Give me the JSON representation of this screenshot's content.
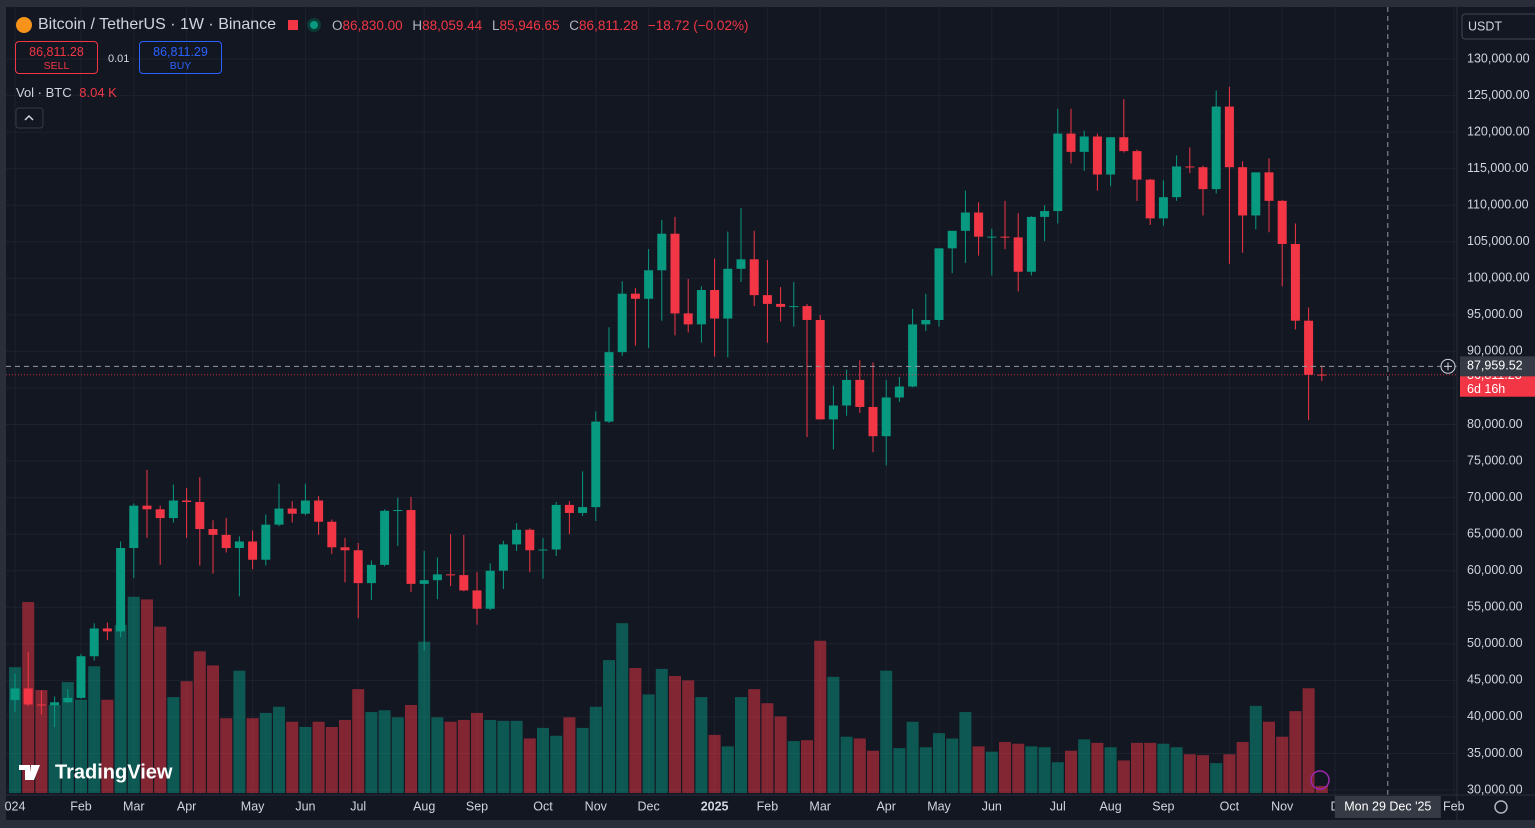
{
  "chart_data": {
    "type": "candlestick",
    "title": "Bitcoin / TetherUS · 1W · Binance",
    "open": [
      42300,
      43900,
      41700,
      41600,
      42000,
      42600,
      48300,
      52100,
      51700,
      63100,
      68900,
      68400,
      67200,
      69600,
      69400,
      65700,
      64900,
      63100,
      64000,
      61500,
      66300,
      68500,
      67800,
      69600,
      66700,
      63200,
      62800,
      58300,
      60800,
      68200,
      68300,
      58200,
      58700,
      59500,
      59400,
      57300,
      54800,
      60000,
      63600,
      65600,
      62800,
      62900,
      69000,
      67900,
      68700,
      80400,
      89900,
      97900,
      97200,
      101100,
      106100,
      95200,
      93700,
      98400,
      94500,
      101300,
      102600,
      97700,
      96500,
      96100,
      96200,
      94300,
      80700,
      82600,
      86100,
      82400,
      78400,
      83700,
      85200,
      93700,
      94300,
      104100,
      106500,
      109000,
      105700,
      105700,
      105600,
      100900,
      108400,
      109200,
      119800,
      117300,
      119400,
      114200,
      119300,
      117400,
      113500,
      108200,
      111100,
      115300,
      115200,
      112200,
      123500,
      115200,
      108600,
      114500,
      110600,
      104700,
      94200,
      86830
    ],
    "high": [
      45900,
      48900,
      43600,
      42800,
      43800,
      48600,
      52800,
      52900,
      64000,
      69200,
      73800,
      68900,
      71800,
      71300,
      72800,
      66900,
      67200,
      64700,
      65500,
      67700,
      71900,
      69500,
      71900,
      70200,
      67000,
      64500,
      63800,
      61400,
      68400,
      70000,
      70100,
      62700,
      61800,
      65000,
      64900,
      59800,
      61000,
      64100,
      66500,
      65800,
      64500,
      69400,
      69500,
      73600,
      81800,
      93300,
      99600,
      98700,
      104000,
      108000,
      108400,
      99900,
      98900,
      102700,
      106400,
      109600,
      106500,
      102500,
      98800,
      99500,
      96500,
      95000,
      85300,
      87500,
      88800,
      88500,
      86100,
      86500,
      95800,
      97900,
      104100,
      105800,
      112000,
      110400,
      106800,
      110600,
      108900,
      108500,
      110000,
      123200,
      123200,
      120200,
      119800,
      119300,
      124500,
      117600,
      113600,
      113400,
      116800,
      117900,
      115400,
      125700,
      126200,
      116000,
      114000,
      116400,
      110700,
      107500,
      96000,
      88059.44
    ],
    "low": [
      40700,
      41500,
      40300,
      38600,
      41900,
      42500,
      47700,
      50500,
      50900,
      59000,
      64500,
      60800,
      66600,
      64500,
      60700,
      59600,
      62500,
      56500,
      60200,
      60700,
      66100,
      66600,
      67600,
      64900,
      62300,
      58400,
      53500,
      56000,
      60600,
      63400,
      57100,
      49100,
      56100,
      57900,
      57200,
      52600,
      54600,
      57500,
      62700,
      59800,
      58900,
      62000,
      65000,
      67500,
      66800,
      80200,
      89400,
      90800,
      90500,
      94200,
      92200,
      92600,
      91200,
      89300,
      89200,
      99500,
      96200,
      91200,
      94100,
      93400,
      78300,
      81000,
      76600,
      81200,
      81600,
      76200,
      74400,
      83100,
      85100,
      92800,
      93400,
      100700,
      102100,
      103100,
      100400,
      104000,
      98200,
      100400,
      105100,
      107500,
      115700,
      114700,
      112000,
      112600,
      117200,
      110600,
      107300,
      107200,
      110600,
      114400,
      108600,
      111600,
      102000,
      103500,
      106700,
      106300,
      98900,
      93000,
      80600,
      85946.65
    ],
    "close": [
      43900,
      41700,
      41600,
      42000,
      42600,
      48300,
      52100,
      51700,
      63100,
      68900,
      68400,
      67200,
      69600,
      69400,
      65700,
      64900,
      63100,
      64000,
      61500,
      66300,
      68500,
      67800,
      69600,
      66700,
      63200,
      62800,
      58300,
      60800,
      68200,
      68300,
      58200,
      58700,
      59500,
      59400,
      57300,
      54800,
      60000,
      63600,
      65600,
      62800,
      62900,
      69000,
      67900,
      68700,
      80400,
      89900,
      97900,
      97200,
      101100,
      106100,
      95200,
      93700,
      98400,
      94500,
      101300,
      102600,
      97700,
      96500,
      96100,
      96200,
      94300,
      80700,
      82600,
      86100,
      82400,
      78400,
      83700,
      85200,
      93700,
      94300,
      104100,
      106500,
      109000,
      105700,
      105700,
      105600,
      100900,
      108400,
      109200,
      119800,
      117300,
      119400,
      114200,
      119300,
      117400,
      113500,
      108200,
      111100,
      115300,
      115200,
      112200,
      123500,
      115200,
      108600,
      114500,
      110600,
      104700,
      94200,
      86800,
      86811.28
    ],
    "volume": [
      143000,
      217000,
      117000,
      100000,
      126000,
      106000,
      144000,
      106000,
      191000,
      223000,
      220000,
      189000,
      109000,
      127000,
      161000,
      145000,
      85000,
      139000,
      85000,
      91000,
      98000,
      81000,
      75000,
      81000,
      75000,
      83000,
      118000,
      92000,
      94000,
      86000,
      100000,
      172000,
      86000,
      81000,
      83000,
      91000,
      83000,
      82000,
      82000,
      62000,
      74000,
      65000,
      86000,
      74000,
      98000,
      151000,
      193000,
      142000,
      112000,
      141000,
      133000,
      128000,
      109000,
      66000,
      53000,
      109000,
      118000,
      102000,
      87000,
      59000,
      60000,
      173000,
      132000,
      64000,
      62000,
      48000,
      139000,
      51000,
      81000,
      52000,
      68000,
      62000,
      92000,
      53000,
      47000,
      58000,
      56000,
      53000,
      52000,
      35000,
      48000,
      61000,
      57000,
      52000,
      37000,
      57000,
      57000,
      56000,
      52000,
      44000,
      43000,
      34000,
      44000,
      58000,
      99000,
      81000,
      64000,
      93000,
      119000,
      8040
    ],
    "up_color": "#089981",
    "down_color": "#f23645",
    "ylim": [
      29590,
      136980
    ],
    "yticks": [
      {
        "value": 30000,
        "label": "30,000.00"
      },
      {
        "value": 35000,
        "label": "35,000.00"
      },
      {
        "value": 40000,
        "label": "40,000.00"
      },
      {
        "value": 45000,
        "label": "45,000.00"
      },
      {
        "value": 50000,
        "label": "50,000.00"
      },
      {
        "value": 55000,
        "label": "55,000.00"
      },
      {
        "value": 60000,
        "label": "60,000.00"
      },
      {
        "value": 65000,
        "label": "65,000.00"
      },
      {
        "value": 70000,
        "label": "70,000.00"
      },
      {
        "value": 75000,
        "label": "75,000.00"
      },
      {
        "value": 80000,
        "label": "80,000.00"
      },
      {
        "value": 85000,
        "label": "85,000.00"
      },
      {
        "value": 90000,
        "label": "90,000.00"
      },
      {
        "value": 95000,
        "label": "95,000.00"
      },
      {
        "value": 100000,
        "label": "100,000.00"
      },
      {
        "value": 105000,
        "label": "105,000.00"
      },
      {
        "value": 110000,
        "label": "110,000.00"
      },
      {
        "value": 115000,
        "label": "115,000.00"
      },
      {
        "value": 120000,
        "label": "120,000.00"
      },
      {
        "value": 125000,
        "label": "125,000.00"
      },
      {
        "value": 130000,
        "label": "130,000.00"
      }
    ],
    "xticks": [
      {
        "value": 0,
        "label": "024"
      },
      {
        "value": 5,
        "label": "Feb"
      },
      {
        "value": 9,
        "label": "Mar"
      },
      {
        "value": 13,
        "label": "Apr"
      },
      {
        "value": 18,
        "label": "May"
      },
      {
        "value": 22,
        "label": "Jun"
      },
      {
        "value": 26,
        "label": "Jul"
      },
      {
        "value": 31,
        "label": "Aug"
      },
      {
        "value": 35,
        "label": "Sep"
      },
      {
        "value": 40,
        "label": "Oct"
      },
      {
        "value": 44,
        "label": "Nov"
      },
      {
        "value": 48,
        "label": "Dec"
      },
      {
        "value": 53,
        "label": "2025"
      },
      {
        "value": 57,
        "label": "Feb"
      },
      {
        "value": 61,
        "label": "Mar"
      },
      {
        "value": 66,
        "label": "Apr"
      },
      {
        "value": 70,
        "label": "May"
      },
      {
        "value": 74,
        "label": "Jun"
      },
      {
        "value": 79,
        "label": "Jul"
      },
      {
        "value": 83,
        "label": "Aug"
      },
      {
        "value": 87,
        "label": "Sep"
      },
      {
        "value": 92,
        "label": "Oct"
      },
      {
        "value": 96,
        "label": "Nov"
      },
      {
        "value": 100,
        "label": "D"
      },
      {
        "value": 109,
        "label": "Feb"
      }
    ],
    "grid": true,
    "ohlc_labels": {
      "open": "86,830.00",
      "high": "88,059.44",
      "low": "85,946.65",
      "close": "86,811.28"
    },
    "change_label": "−18.72 (−0.02%)",
    "crosshair": {
      "price": 87959.52,
      "price_label": "87,959.52",
      "index": 104,
      "date_label": "Mon 29 Dec '25"
    },
    "countdown": "6d 16h",
    "volume_label": "Vol · BTC",
    "volume_value_label": "8.04 K"
  },
  "ui": {
    "sell_price": "86,811.28",
    "sell": "SELL",
    "quantity": "0.01",
    "buy_price": "86,811.29",
    "buy": "BUY",
    "currency": "USDT",
    "brand": "TradingView",
    "ohlc_letters": {
      "open": "O",
      "high": "H",
      "low": "L",
      "close": "C"
    }
  }
}
